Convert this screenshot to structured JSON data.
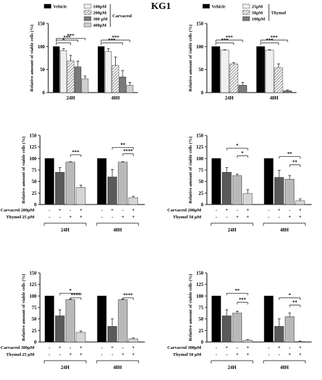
{
  "figure_title": "KG1",
  "colors": {
    "vehicle": "#000000",
    "dark": "#555555",
    "mid": "#777777",
    "light": "#bdbdbd",
    "lighter": "#dddddd",
    "white": "#f2f2f2"
  },
  "chart_data": [
    {
      "id": "p1",
      "type": "bar",
      "ylabel": "Relative amount of viable cells (%)",
      "ylim": [
        0,
        150
      ],
      "yticks": [
        0,
        50,
        100,
        150
      ],
      "categories": [
        "24H",
        "48H"
      ],
      "series": [
        {
          "name": "Vehicle",
          "values": [
            100,
            100
          ],
          "errors": [
            0,
            0
          ],
          "fill": "#000000"
        },
        {
          "name": "100μM",
          "values": [
            91,
            89
          ],
          "errors": [
            4,
            6
          ],
          "fill": "#f0f0f0"
        },
        {
          "name": "200μM",
          "values": [
            69,
            59
          ],
          "errors": [
            12,
            18
          ],
          "fill": "hatch"
        },
        {
          "name": "300 μM",
          "values": [
            56,
            34
          ],
          "errors": [
            12,
            14
          ],
          "fill": "#7a7a7a"
        },
        {
          "name": "400μM",
          "values": [
            30,
            16
          ],
          "errors": [
            6,
            6
          ],
          "fill": "#cfcfcf"
        }
      ],
      "legend_group": "Carvacrol",
      "sig": [
        {
          "cat": 0,
          "from": 0,
          "to": 2,
          "level": 108,
          "label": "*"
        },
        {
          "cat": 0,
          "from": 0,
          "to": 3,
          "level": 114,
          "label": "***"
        },
        {
          "cat": 0,
          "from": 0,
          "to": 4,
          "level": 118,
          "label": "***"
        },
        {
          "cat": 1,
          "from": 0,
          "to": 3,
          "level": 108,
          "label": "***"
        },
        {
          "cat": 1,
          "from": 0,
          "to": 4,
          "level": 114,
          "label": "***"
        }
      ]
    },
    {
      "id": "p2",
      "type": "bar",
      "ylabel": "Relative amount of viable cells (%)",
      "ylim": [
        0,
        150
      ],
      "yticks": [
        0,
        50,
        100,
        150
      ],
      "categories": [
        "24H",
        "48H"
      ],
      "series": [
        {
          "name": "Vehicle",
          "values": [
            100,
            100
          ],
          "errors": [
            0,
            0
          ],
          "fill": "#000000"
        },
        {
          "name": "25μM",
          "values": [
            92,
            92
          ],
          "errors": [
            1,
            1
          ],
          "fill": "#f0f0f0"
        },
        {
          "name": "50μM",
          "values": [
            62,
            54
          ],
          "errors": [
            3,
            8
          ],
          "fill": "hatch"
        },
        {
          "name": "100μM",
          "values": [
            16,
            4
          ],
          "errors": [
            6,
            2
          ],
          "fill": "#7a7a7a"
        }
      ],
      "legend_group": "Thymol",
      "sig": [
        {
          "cat": 0,
          "from": 0,
          "to": 2,
          "level": 108,
          "label": "***"
        },
        {
          "cat": 0,
          "from": 0,
          "to": 3,
          "level": 114,
          "label": "***"
        },
        {
          "cat": 1,
          "from": 0,
          "to": 2,
          "level": 108,
          "label": "***"
        },
        {
          "cat": 1,
          "from": 0,
          "to": 3,
          "level": 114,
          "label": "***"
        }
      ]
    },
    {
      "id": "p3",
      "type": "bar",
      "ylabel": "Relative amount of viable cells (%)",
      "ylim": [
        0,
        150
      ],
      "yticks": [
        0,
        25,
        50,
        75,
        100,
        125,
        150
      ],
      "categories": [
        "24H",
        "48H"
      ],
      "values": [
        [
          100,
          70,
          92,
          37
        ],
        [
          100,
          60,
          92,
          15
        ]
      ],
      "errors": [
        [
          0,
          10,
          1,
          5
        ],
        [
          0,
          16,
          1,
          3
        ]
      ],
      "row_labels": [
        "Carvacrol 200μM",
        "Thymol 25 μM"
      ],
      "rows": [
        [
          "-",
          "+",
          "-",
          "+"
        ],
        [
          "-",
          "-",
          "+",
          "+"
        ]
      ],
      "sig": [
        {
          "cat": 0,
          "from": 2,
          "to": 3,
          "level": 108,
          "label": "***"
        },
        {
          "cat": 1,
          "from": 1,
          "to": 3,
          "level": 124,
          "label": "**"
        },
        {
          "cat": 1,
          "from": 2,
          "to": 3,
          "level": 110,
          "label": "****"
        }
      ]
    },
    {
      "id": "p4",
      "type": "bar",
      "ylabel": "Relative amount of viable cells (%)",
      "ylim": [
        0,
        150
      ],
      "yticks": [
        0,
        25,
        50,
        75,
        100,
        125,
        150
      ],
      "categories": [
        "24H",
        "48H"
      ],
      "values": [
        [
          100,
          70,
          63,
          24
        ],
        [
          100,
          59,
          55,
          8
        ]
      ],
      "errors": [
        [
          0,
          10,
          3,
          8
        ],
        [
          0,
          15,
          8,
          4
        ]
      ],
      "row_labels": [
        "Carvacrol 200μM",
        "Thymol 50 μM"
      ],
      "rows": [
        [
          "-",
          "+",
          "-",
          "+"
        ],
        [
          "-",
          "-",
          "+",
          "+"
        ]
      ],
      "sig": [
        {
          "cat": 0,
          "from": 1,
          "to": 3,
          "level": 122,
          "label": "*"
        },
        {
          "cat": 0,
          "from": 2,
          "to": 3,
          "level": 106,
          "label": "*"
        },
        {
          "cat": 1,
          "from": 1,
          "to": 3,
          "level": 104,
          "label": "**"
        },
        {
          "cat": 1,
          "from": 2,
          "to": 3,
          "level": 86,
          "label": "**"
        }
      ]
    },
    {
      "id": "p5",
      "type": "bar",
      "ylabel": "Relative amount of viable cells (%)",
      "ylim": [
        0,
        150
      ],
      "yticks": [
        0,
        25,
        50,
        75,
        100,
        125,
        150
      ],
      "categories": [
        "24H",
        "48H"
      ],
      "values": [
        [
          100,
          57,
          92,
          21
        ],
        [
          100,
          34,
          92,
          7
        ]
      ],
      "errors": [
        [
          0,
          13,
          1,
          3
        ],
        [
          0,
          16,
          1,
          2
        ]
      ],
      "row_labels": [
        "Carvacrol 300μM",
        "Thymol 25 μM"
      ],
      "rows": [
        [
          "-",
          "+",
          "-",
          "+"
        ],
        [
          "-",
          "-",
          "+",
          "+"
        ]
      ],
      "sig": [
        {
          "cat": 0,
          "from": 1,
          "to": 3,
          "level": 106,
          "label": "*"
        },
        {
          "cat": 0,
          "from": 2,
          "to": 3,
          "level": 96,
          "label": "****"
        },
        {
          "cat": 1,
          "from": 2,
          "to": 3,
          "level": 96,
          "label": "****"
        }
      ]
    },
    {
      "id": "p6",
      "type": "bar",
      "ylabel": "Relative amount of viable cells (%)",
      "ylim": [
        0,
        150
      ],
      "yticks": [
        0,
        25,
        50,
        75,
        100,
        125,
        150
      ],
      "categories": [
        "24H",
        "48H"
      ],
      "values": [
        [
          100,
          57,
          63,
          4
        ],
        [
          100,
          34,
          55,
          1
        ]
      ],
      "errors": [
        [
          0,
          13,
          4,
          1
        ],
        [
          0,
          16,
          8,
          1
        ]
      ],
      "row_labels": [
        "Carvacrol 300μM",
        "Thymol 50 μM"
      ],
      "rows": [
        [
          "-",
          "+",
          "-",
          "+"
        ],
        [
          "-",
          "-",
          "+",
          "+"
        ]
      ],
      "sig": [
        {
          "cat": 0,
          "from": 1,
          "to": 3,
          "level": 106,
          "label": "**"
        },
        {
          "cat": 0,
          "from": 2,
          "to": 3,
          "level": 86,
          "label": "***"
        },
        {
          "cat": 1,
          "from": 1,
          "to": 3,
          "level": 96,
          "label": "*"
        },
        {
          "cat": 1,
          "from": 2,
          "to": 3,
          "level": 80,
          "label": "**"
        }
      ]
    }
  ]
}
